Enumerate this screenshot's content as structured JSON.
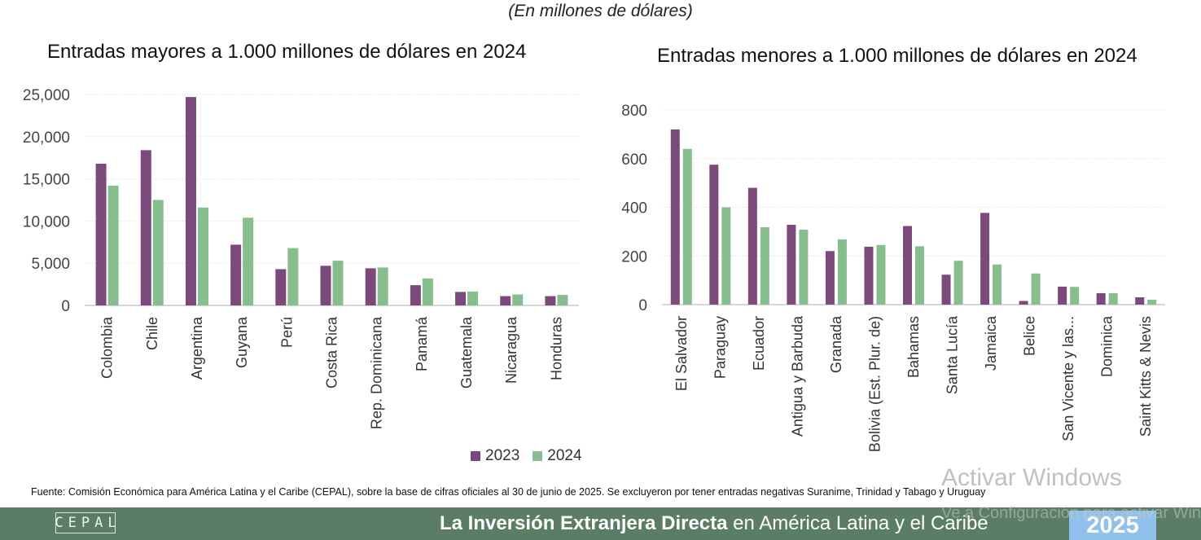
{
  "subtitle": "(En millones de dólares)",
  "legend": {
    "label_2023": "2023",
    "label_2024": "2024"
  },
  "colors": {
    "series_2023": "#7b4a7b",
    "series_2024": "#86bf8d",
    "grid": "#d9d9d9",
    "axis": "#bfbfbf",
    "footer": "#5b7d66"
  },
  "chart_data": [
    {
      "type": "bar",
      "title": "Entradas mayores a 1.000 millones de dólares en 2024",
      "categories": [
        "Colombia",
        "Chile",
        "Argentina",
        "Guyana",
        "Perú",
        "Costa Rica",
        "Rep. Dominicana",
        "Panamá",
        "Guatemala",
        "Nicaragua",
        "Honduras"
      ],
      "series": [
        {
          "name": "2023",
          "values": [
            16800,
            18400,
            24700,
            7200,
            4300,
            4700,
            4400,
            2400,
            1600,
            1100,
            1100
          ]
        },
        {
          "name": "2024",
          "values": [
            14200,
            12500,
            11600,
            10400,
            6800,
            5300,
            4500,
            3200,
            1650,
            1300,
            1250
          ]
        }
      ],
      "ylim": [
        0,
        25000
      ],
      "yticks": [
        0,
        5000,
        10000,
        15000,
        20000,
        25000
      ],
      "ytick_labels": [
        "0",
        "5,000",
        "10,000",
        "15,000",
        "20,000",
        "25,000"
      ],
      "grid": true
    },
    {
      "type": "bar",
      "title": "Entradas menores a 1.000 millones de dólares en 2024",
      "categories": [
        "El Salvador",
        "Paraguay",
        "Ecuador",
        "Antigua y Barbuda",
        "Granada",
        "Bolivia (Est. Plur. de)",
        "Bahamas",
        "Santa Lucía",
        "Jamaica",
        "Belice",
        "San Vicente y las...",
        "Dominica",
        "Saint Kitts & Nevis"
      ],
      "series": [
        {
          "name": "2023",
          "values": [
            720,
            575,
            480,
            328,
            220,
            238,
            323,
            123,
            377,
            15,
            74,
            47,
            30
          ]
        },
        {
          "name": "2024",
          "values": [
            640,
            400,
            318,
            308,
            268,
            245,
            240,
            180,
            165,
            128,
            73,
            47,
            20
          ]
        }
      ],
      "ylim": [
        0,
        800
      ],
      "yticks": [
        0,
        200,
        400,
        600,
        800
      ],
      "ytick_labels": [
        "0",
        "200",
        "400",
        "600",
        "800"
      ],
      "grid": true
    }
  ],
  "source": "Fuente: Comisión Económica para América Latina y el Caribe (CEPAL), sobre la base de cifras oficiales al 30 de junio de 2025. Se excluyeron por tener entradas negativas Suranime, Trinidad y Tabago y Uruguay",
  "footer": {
    "logo_text": "CEPAL",
    "title_bold": "La Inversión Extranjera Directa",
    "title_regular": " en América Latina y el Caribe",
    "year": "2025"
  },
  "watermark": {
    "line1": "Activar Windows",
    "line2": "Ve a Configuración para activar Windows."
  }
}
